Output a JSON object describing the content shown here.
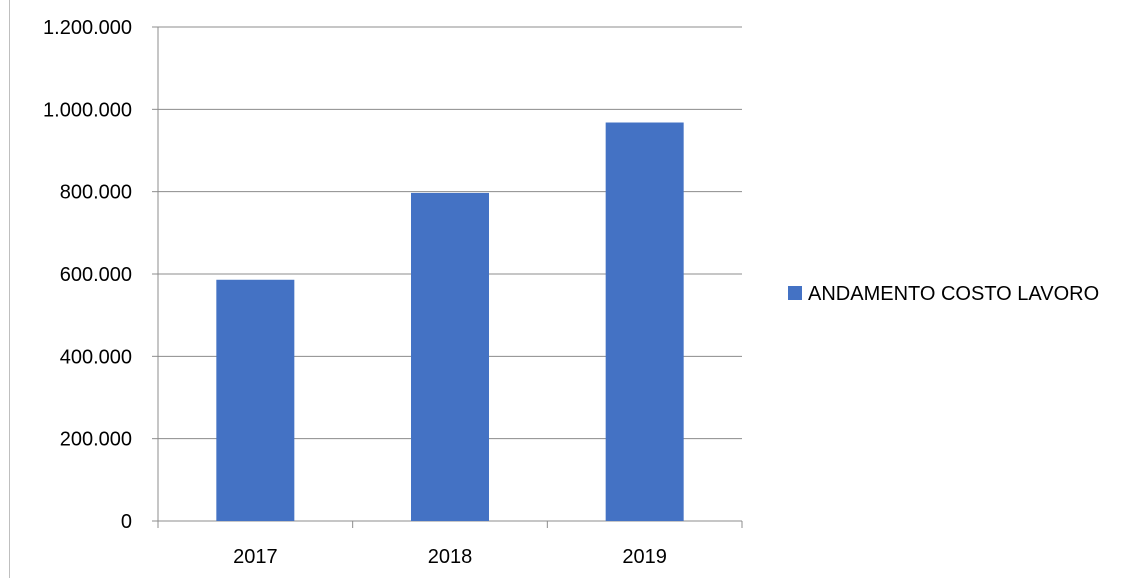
{
  "chart_data": {
    "type": "bar",
    "categories": [
      "2017",
      "2018",
      "2019"
    ],
    "series": [
      {
        "name": "ANDAMENTO COSTO LAVORO",
        "values": [
          586000,
          797000,
          968000
        ],
        "color": "#4472C4"
      }
    ],
    "title": "",
    "xlabel": "",
    "ylabel": "",
    "ylim": [
      0,
      1200000
    ],
    "yticks": [
      0,
      200000,
      400000,
      600000,
      800000,
      1000000,
      1200000
    ],
    "ytick_labels": [
      "0",
      "200.000",
      "400.000",
      "600.000",
      "800.000",
      "1.000.000",
      "1.200.000"
    ],
    "grid": true,
    "legend_position": "right"
  }
}
